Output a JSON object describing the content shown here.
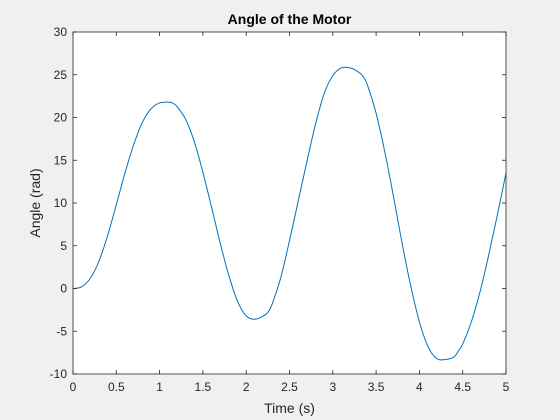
{
  "chart_data": {
    "type": "line",
    "title": "Angle of the Motor",
    "xlabel": "Time (s)",
    "ylabel": "Angle (rad)",
    "xlim": [
      0,
      5
    ],
    "ylim": [
      -10,
      30
    ],
    "xticks": [
      0,
      0.5,
      1,
      1.5,
      2,
      2.5,
      3,
      3.5,
      4,
      4.5,
      5
    ],
    "xtick_labels": [
      "0",
      "0.5",
      "1",
      "1.5",
      "2",
      "2.5",
      "3",
      "3.5",
      "4",
      "4.5",
      "5"
    ],
    "yticks": [
      -10,
      -5,
      0,
      5,
      10,
      15,
      20,
      25,
      30
    ],
    "ytick_labels": [
      "-10",
      "-5",
      "0",
      "5",
      "10",
      "15",
      "20",
      "25",
      "30"
    ],
    "grid": false,
    "series": [
      {
        "color": "#0072BD",
        "x": [
          0,
          0.1,
          0.2,
          0.3,
          0.4,
          0.5,
          0.6,
          0.7,
          0.8,
          0.9,
          1.0,
          1.1,
          1.15,
          1.2,
          1.3,
          1.4,
          1.5,
          1.6,
          1.7,
          1.8,
          1.9,
          2.0,
          2.1,
          2.2,
          2.25,
          2.3,
          2.4,
          2.5,
          2.6,
          2.7,
          2.8,
          2.9,
          3.0,
          3.1,
          3.2,
          3.3,
          3.35,
          3.4,
          3.5,
          3.6,
          3.7,
          3.8,
          3.9,
          4.0,
          4.1,
          4.2,
          4.3,
          4.4,
          4.45,
          4.5,
          4.6,
          4.7,
          4.8,
          4.9,
          5.0
        ],
        "y": [
          0,
          0.2,
          1.2,
          3.2,
          6.2,
          9.8,
          13.5,
          16.8,
          19.4,
          21.0,
          21.7,
          21.8,
          21.7,
          21.3,
          19.8,
          17.2,
          13.6,
          9.5,
          5.3,
          1.5,
          -1.5,
          -3.2,
          -3.6,
          -3.2,
          -2.8,
          -1.8,
          1.3,
          5.6,
          10.2,
          14.8,
          19.2,
          22.8,
          24.9,
          25.8,
          25.8,
          25.3,
          24.8,
          23.8,
          20.5,
          16.0,
          10.8,
          5.3,
          0.3,
          -3.9,
          -6.8,
          -8.2,
          -8.3,
          -8.0,
          -7.3,
          -6.5,
          -3.9,
          -0.4,
          3.9,
          8.6,
          13.5
        ]
      }
    ]
  }
}
